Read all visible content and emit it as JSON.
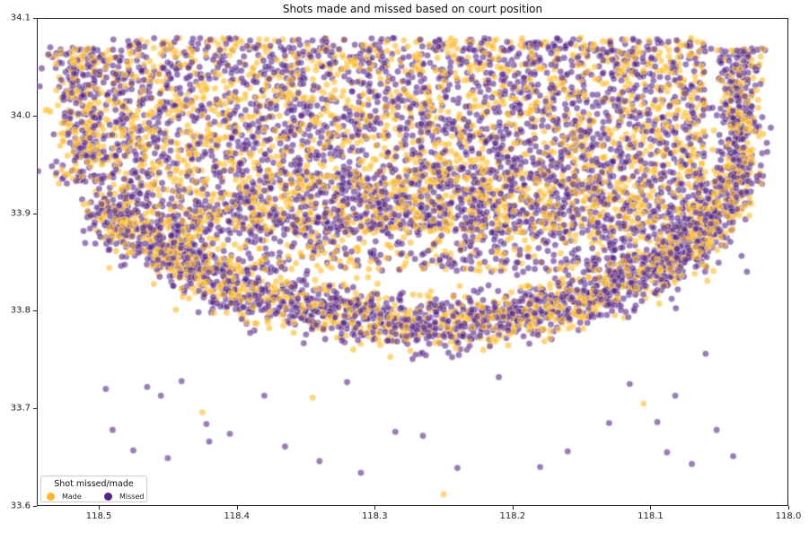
{
  "chart_data": {
    "type": "scatter",
    "title": "Shots made and missed based on court position",
    "xlabel": "",
    "ylabel": "",
    "xlim": [
      118.545,
      118.0
    ],
    "ylim": [
      33.6,
      34.1
    ],
    "x_inverted": true,
    "grid": false,
    "x_ticks": [
      "118.5",
      "118.4",
      "118.3",
      "118.2",
      "118.1",
      "118.0"
    ],
    "x_tick_values": [
      118.5,
      118.4,
      118.3,
      118.2,
      118.1,
      118.0
    ],
    "y_ticks": [
      "33.6",
      "33.7",
      "33.8",
      "33.9",
      "34.0",
      "34.1"
    ],
    "y_tick_values": [
      33.6,
      33.7,
      33.8,
      33.9,
      34.0,
      34.1
    ],
    "legend": {
      "title": "Shot missed/made",
      "position": "lower left",
      "entries": [
        {
          "label": "Made",
          "color": "#FDB927"
        },
        {
          "label": "Missed",
          "color": "#552583"
        }
      ]
    },
    "marker_alpha": 0.6,
    "marker_edge_color": "#ffffff",
    "series": [
      {
        "name": "Made",
        "color": "#FDB927"
      },
      {
        "name": "Missed",
        "color": "#552583"
      }
    ],
    "distribution_notes": "Dense scatter (~thousands of points) forming a court shape: a filled upper region between lat 33.88-34.08, a curved 3-point arc band from (118.50,33.91) down to (118.26,33.79) and up to (118.04,33.93), vertical corner strips near lon 118.51 and 118.04, and sparse outliers below lat 33.76 mostly Missed.",
    "clusters": [
      {
        "name": "upper-region",
        "x_range": [
          118.49,
          118.06
        ],
        "y_range": [
          33.88,
          34.08
        ],
        "count": 4200,
        "made_ratio": 0.42
      },
      {
        "name": "mid-region",
        "x_range": [
          118.46,
          118.08
        ],
        "y_range": [
          33.84,
          33.95
        ],
        "count": 1400,
        "made_ratio": 0.4
      },
      {
        "name": "left-corner",
        "x_center": 118.51,
        "x_spread": 0.012,
        "y_range": [
          33.93,
          34.07
        ],
        "count": 420,
        "made_ratio": 0.42
      },
      {
        "name": "right-corner",
        "x_center": 118.035,
        "x_spread": 0.008,
        "y_range": [
          33.93,
          34.07
        ],
        "count": 380,
        "made_ratio": 0.38
      },
      {
        "name": "arc",
        "path": [
          [
            118.5,
            33.905
          ],
          [
            118.45,
            33.855
          ],
          [
            118.4,
            33.82
          ],
          [
            118.33,
            33.8
          ],
          [
            118.27,
            33.785
          ],
          [
            118.2,
            33.795
          ],
          [
            118.15,
            33.81
          ],
          [
            118.1,
            33.84
          ],
          [
            118.06,
            33.88
          ],
          [
            118.04,
            33.93
          ]
        ],
        "spread": 0.014,
        "count": 2600,
        "made_ratio": 0.38
      }
    ],
    "outliers": [
      {
        "x": 118.495,
        "y": 33.72,
        "result": "Missed"
      },
      {
        "x": 118.49,
        "y": 33.678,
        "result": "Missed"
      },
      {
        "x": 118.475,
        "y": 33.657,
        "result": "Missed"
      },
      {
        "x": 118.465,
        "y": 33.722,
        "result": "Missed"
      },
      {
        "x": 118.455,
        "y": 33.713,
        "result": "Missed"
      },
      {
        "x": 118.45,
        "y": 33.649,
        "result": "Missed"
      },
      {
        "x": 118.44,
        "y": 33.728,
        "result": "Missed"
      },
      {
        "x": 118.425,
        "y": 33.696,
        "result": "Made"
      },
      {
        "x": 118.422,
        "y": 33.684,
        "result": "Missed"
      },
      {
        "x": 118.42,
        "y": 33.666,
        "result": "Missed"
      },
      {
        "x": 118.405,
        "y": 33.674,
        "result": "Missed"
      },
      {
        "x": 118.38,
        "y": 33.713,
        "result": "Missed"
      },
      {
        "x": 118.365,
        "y": 33.661,
        "result": "Missed"
      },
      {
        "x": 118.345,
        "y": 33.711,
        "result": "Made"
      },
      {
        "x": 118.34,
        "y": 33.646,
        "result": "Missed"
      },
      {
        "x": 118.32,
        "y": 33.727,
        "result": "Missed"
      },
      {
        "x": 118.31,
        "y": 33.634,
        "result": "Missed"
      },
      {
        "x": 118.285,
        "y": 33.676,
        "result": "Missed"
      },
      {
        "x": 118.265,
        "y": 33.672,
        "result": "Missed"
      },
      {
        "x": 118.25,
        "y": 33.612,
        "result": "Made"
      },
      {
        "x": 118.24,
        "y": 33.639,
        "result": "Missed"
      },
      {
        "x": 118.21,
        "y": 33.732,
        "result": "Missed"
      },
      {
        "x": 118.18,
        "y": 33.64,
        "result": "Missed"
      },
      {
        "x": 118.16,
        "y": 33.656,
        "result": "Missed"
      },
      {
        "x": 118.13,
        "y": 33.685,
        "result": "Missed"
      },
      {
        "x": 118.115,
        "y": 33.725,
        "result": "Missed"
      },
      {
        "x": 118.105,
        "y": 33.705,
        "result": "Made"
      },
      {
        "x": 118.095,
        "y": 33.686,
        "result": "Missed"
      },
      {
        "x": 118.088,
        "y": 33.655,
        "result": "Missed"
      },
      {
        "x": 118.082,
        "y": 33.713,
        "result": "Missed"
      },
      {
        "x": 118.07,
        "y": 33.643,
        "result": "Missed"
      },
      {
        "x": 118.06,
        "y": 33.756,
        "result": "Missed"
      },
      {
        "x": 118.052,
        "y": 33.678,
        "result": "Missed"
      },
      {
        "x": 118.04,
        "y": 33.651,
        "result": "Missed"
      },
      {
        "x": 118.03,
        "y": 33.84,
        "result": "Missed"
      }
    ]
  }
}
